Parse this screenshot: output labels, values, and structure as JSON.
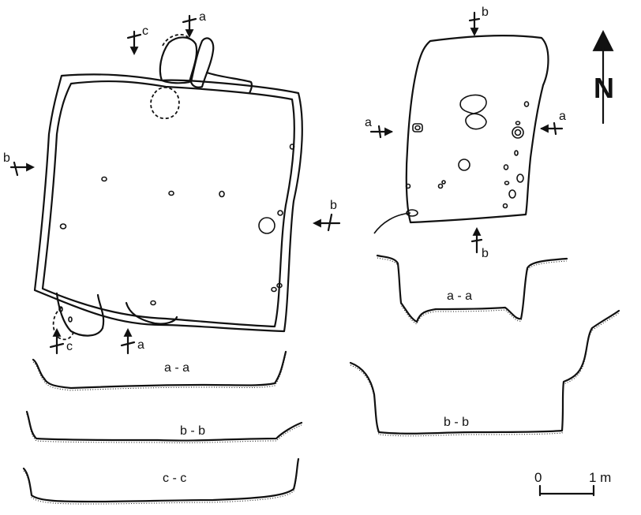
{
  "north": {
    "letter": "N"
  },
  "scale": {
    "zero": "0",
    "one": "1 m"
  },
  "markers": {
    "a": "a",
    "b": "b",
    "c": "c"
  },
  "sections": {
    "a_a": "a - a",
    "b_b": "b - b",
    "c_c": "c - c"
  }
}
